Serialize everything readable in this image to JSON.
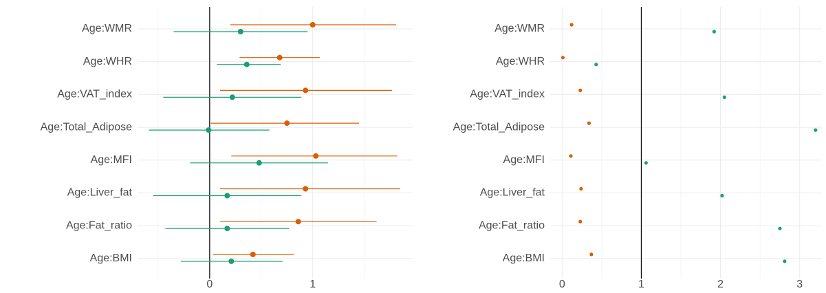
{
  "chart_data": [
    {
      "type": "dotwhisker",
      "categories": [
        "Age:WMR",
        "Age:WHR",
        "Age:VAT_index",
        "Age:Total_Adipose",
        "Age:MFI",
        "Age:Liver_fat",
        "Age:Fat_ratio",
        "Age:BMI"
      ],
      "xlim": [
        -0.7,
        1.97
      ],
      "xticks": [
        0,
        1
      ],
      "minor_xticks": [
        -0.5,
        0.5,
        1.5
      ],
      "refline": 0,
      "grid": true,
      "series": [
        {
          "color": "#d95f02",
          "values": [
            1.0,
            0.68,
            0.93,
            0.75,
            1.03,
            0.93,
            0.86,
            0.42
          ],
          "lower": [
            0.2,
            0.29,
            0.1,
            0.01,
            0.21,
            0.1,
            0.1,
            0.03
          ],
          "upper": [
            1.81,
            1.07,
            1.77,
            1.45,
            1.82,
            1.85,
            1.62,
            0.82
          ]
        },
        {
          "color": "#1b9e77",
          "values": [
            0.3,
            0.36,
            0.22,
            -0.01,
            0.48,
            0.17,
            0.17,
            0.21
          ],
          "lower": [
            -0.35,
            0.07,
            -0.45,
            -0.59,
            -0.19,
            -0.55,
            -0.43,
            -0.28
          ],
          "upper": [
            0.95,
            0.69,
            0.89,
            0.58,
            1.15,
            0.89,
            0.77,
            0.71
          ]
        }
      ]
    },
    {
      "type": "dot",
      "categories": [
        "Age:WMR",
        "Age:WHR",
        "Age:VAT_index",
        "Age:Total_Adipose",
        "Age:MFI",
        "Age:Liver_fat",
        "Age:Fat_ratio",
        "Age:BMI"
      ],
      "xlim": [
        -0.15,
        3.28
      ],
      "xticks": [
        0,
        1,
        2,
        3
      ],
      "minor_xticks": [
        0.5,
        1.5,
        2.5
      ],
      "refline": 1,
      "grid": true,
      "series": [
        {
          "color": "#d95f02",
          "values": [
            0.12,
            0.01,
            0.23,
            0.34,
            0.11,
            0.24,
            0.23,
            0.37
          ]
        },
        {
          "color": "#1b9e77",
          "values": [
            1.92,
            0.43,
            2.05,
            3.2,
            1.06,
            2.02,
            2.75,
            2.81
          ]
        }
      ]
    }
  ]
}
